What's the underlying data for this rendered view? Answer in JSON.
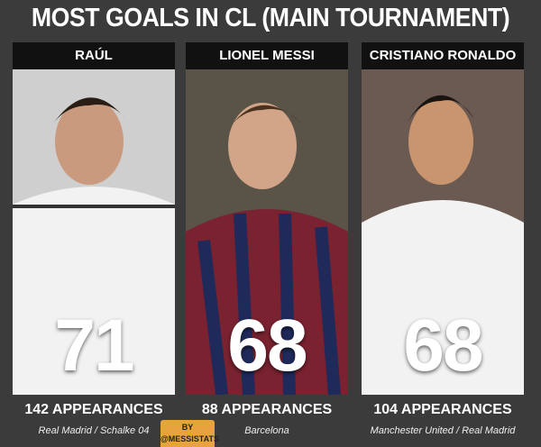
{
  "title": "MOST GOALS IN CL (MAIN TOURNAMENT)",
  "players": [
    {
      "name": "RAÚL",
      "goals": 71,
      "appearances": "142 APPEARANCES",
      "clubs": "Real Madrid / Schalke 04"
    },
    {
      "name": "LIONEL MESSI",
      "goals": 68,
      "appearances": "88 APPEARANCES",
      "clubs": "Barcelona"
    },
    {
      "name": "CRISTIANO RONALDO",
      "goals": 68,
      "appearances": "104 APPEARANCES",
      "clubs": "Manchester United / Real Madrid"
    }
  ],
  "credit": {
    "line1": "BY",
    "line2": "@MESSISTATS"
  }
}
